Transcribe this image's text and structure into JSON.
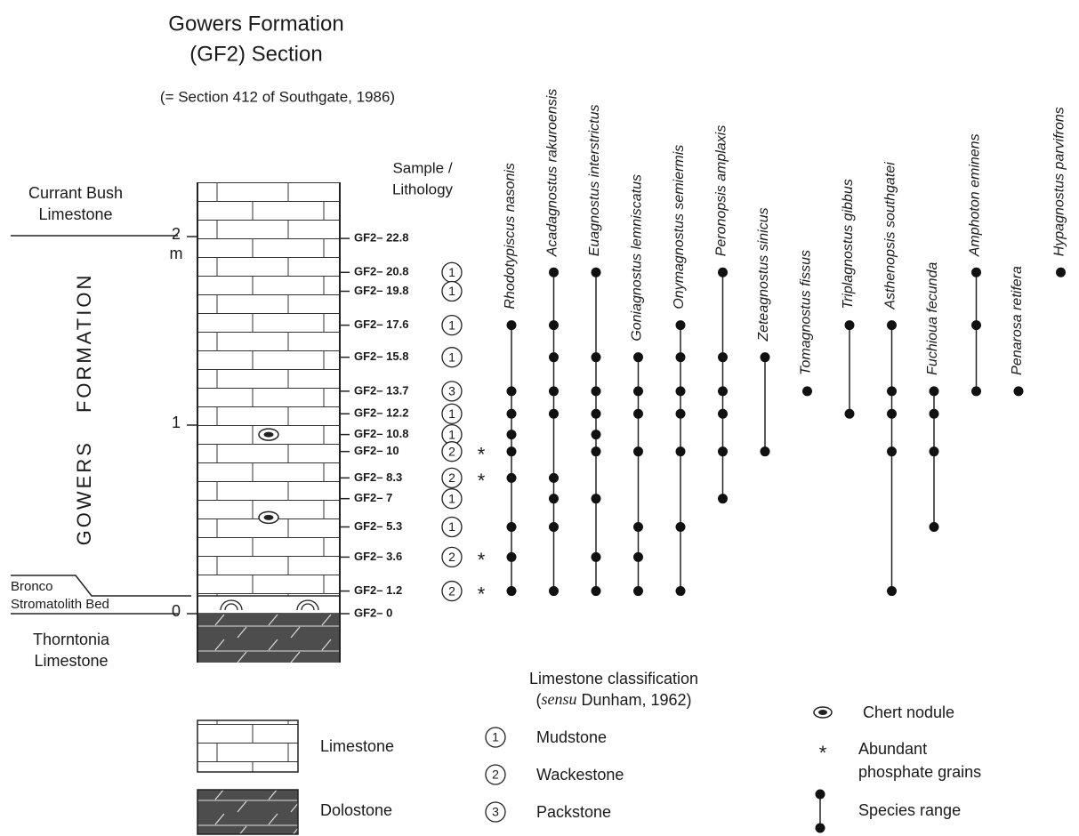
{
  "header": {
    "title_lines": [
      "Gowers Formation",
      "(GF2) Section"
    ],
    "subtitle": "(= Section 412 of Southgate, 1986)"
  },
  "column_header": [
    "Sample /",
    "Lithology"
  ],
  "units": {
    "currant_bush": [
      "Currant Bush",
      "Limestone"
    ],
    "gowers": "GOWERS FORMATION",
    "bronco": [
      "Bronco",
      "Stromatolith Bed"
    ],
    "thorntonia": [
      "Thorntonia",
      "Limestone"
    ]
  },
  "scale": {
    "unit": "m",
    "ticks": [
      0,
      1,
      2
    ]
  },
  "samples": [
    {
      "label": "GF2– 22.8",
      "height": 1.99
    },
    {
      "label": "GF2– 20.8",
      "height": 1.81,
      "lithology": "1"
    },
    {
      "label": "GF2– 19.8",
      "height": 1.71,
      "lithology": "1"
    },
    {
      "label": "GF2– 17.6",
      "height": 1.53,
      "lithology": "1"
    },
    {
      "label": "GF2– 15.8",
      "height": 1.36,
      "lithology": "1"
    },
    {
      "label": "GF2– 13.7",
      "height": 1.18,
      "lithology": "3"
    },
    {
      "label": "GF2– 12.2",
      "height": 1.06,
      "lithology": "1"
    },
    {
      "label": "GF2– 10.8",
      "height": 0.95,
      "lithology": "1"
    },
    {
      "label": "GF2– 10",
      "height": 0.86,
      "lithology": "2",
      "phosphate": "*"
    },
    {
      "label": "GF2– 8.3",
      "height": 0.72,
      "lithology": "2",
      "phosphate": "*"
    },
    {
      "label": "GF2– 7",
      "height": 0.61,
      "lithology": "1"
    },
    {
      "label": "GF2– 5.3",
      "height": 0.46,
      "lithology": "1"
    },
    {
      "label": "GF2– 3.6",
      "height": 0.3,
      "lithology": "2",
      "phosphate": "*"
    },
    {
      "label": "GF2– 1.2",
      "height": 0.12,
      "lithology": "2",
      "phosphate": "*"
    },
    {
      "label": "GF2– 0",
      "height": 0
    }
  ],
  "chert_nodules": [
    0.95,
    0.51
  ],
  "species": [
    {
      "name": "Rhodotypiscus nasonis",
      "present": [
        false,
        false,
        false,
        true,
        false,
        true,
        true,
        true,
        true,
        true,
        false,
        true,
        true,
        true,
        false
      ]
    },
    {
      "name": "Acadagnostus rakuroensis",
      "present": [
        false,
        true,
        false,
        true,
        true,
        true,
        true,
        false,
        false,
        true,
        true,
        true,
        false,
        true,
        false
      ]
    },
    {
      "name": "Euagnostus interstrictus",
      "present": [
        false,
        true,
        false,
        false,
        true,
        true,
        true,
        true,
        true,
        false,
        true,
        false,
        true,
        true,
        false
      ]
    },
    {
      "name": "Goniagnostus lemniscatus",
      "present": [
        false,
        false,
        false,
        false,
        true,
        true,
        true,
        false,
        true,
        false,
        false,
        true,
        true,
        true,
        false
      ]
    },
    {
      "name": "Onymagnostus semiermis",
      "present": [
        false,
        false,
        false,
        true,
        true,
        true,
        true,
        false,
        true,
        false,
        false,
        true,
        false,
        true,
        false
      ]
    },
    {
      "name": "Peronopsis amplaxis",
      "present": [
        false,
        true,
        false,
        false,
        true,
        true,
        true,
        false,
        true,
        false,
        true,
        false,
        false,
        false,
        false
      ]
    },
    {
      "name": "Zeteagnostus sinicus",
      "present": [
        false,
        false,
        false,
        false,
        true,
        false,
        false,
        false,
        true,
        false,
        false,
        false,
        false,
        false,
        false
      ]
    },
    {
      "name": "Tomagnostus fissus",
      "present": [
        false,
        false,
        false,
        false,
        false,
        true,
        false,
        false,
        false,
        false,
        false,
        false,
        false,
        false,
        false
      ]
    },
    {
      "name": "Triplagnostus gibbus",
      "present": [
        false,
        false,
        false,
        true,
        false,
        false,
        true,
        false,
        false,
        false,
        false,
        false,
        false,
        false,
        false
      ]
    },
    {
      "name": "Asthenopsis southgatei",
      "present": [
        false,
        false,
        false,
        true,
        false,
        true,
        true,
        false,
        true,
        false,
        false,
        false,
        false,
        true,
        false
      ]
    },
    {
      "name": "Fuchioua fecunda",
      "present": [
        false,
        false,
        false,
        false,
        false,
        true,
        true,
        false,
        true,
        false,
        false,
        true,
        false,
        false,
        false
      ]
    },
    {
      "name": "Amphoton eminens",
      "present": [
        false,
        true,
        false,
        true,
        false,
        true,
        false,
        false,
        false,
        false,
        false,
        false,
        false,
        false,
        false
      ]
    },
    {
      "name": "Penarosa retifera",
      "present": [
        false,
        false,
        false,
        false,
        false,
        true,
        false,
        false,
        false,
        false,
        false,
        false,
        false,
        false,
        false
      ]
    },
    {
      "name": "Hypagnostus parvifrons",
      "present": [
        false,
        true,
        false,
        false,
        false,
        false,
        false,
        false,
        false,
        false,
        false,
        false,
        false,
        false,
        false
      ]
    }
  ],
  "legend": {
    "lithology": [
      "Limestone",
      "Dolostone"
    ],
    "classification_title": "Limestone classification",
    "classification_source": {
      "open": "(",
      "term": "sensu",
      "rest": " Dunham, 1962)"
    },
    "classes": [
      {
        "code": "1",
        "name": "Mudstone"
      },
      {
        "code": "2",
        "name": "Wackestone"
      },
      {
        "code": "3",
        "name": "Packstone"
      }
    ],
    "chert": "Chert nodule",
    "phosphate": {
      "symbol": "*",
      "lines": [
        "Abundant",
        "phosphate grains"
      ]
    },
    "range": "Species range"
  }
}
